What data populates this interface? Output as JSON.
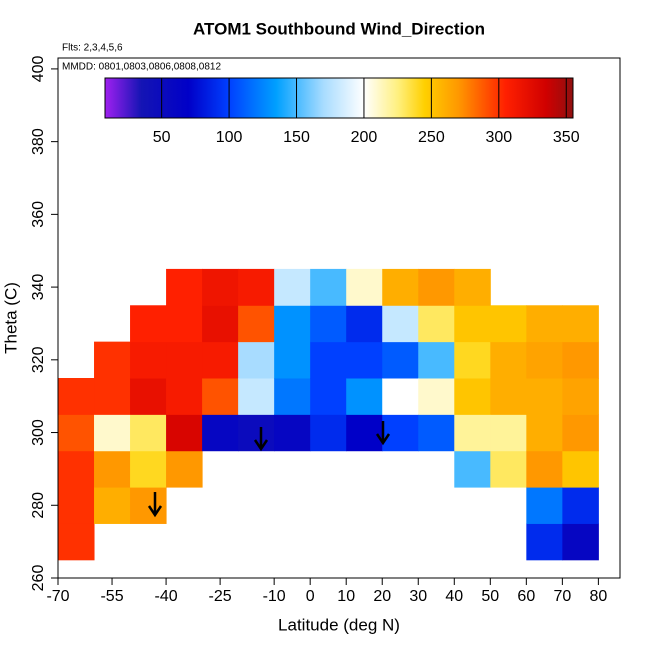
{
  "chart_data": {
    "type": "heatmap",
    "title": "ATOM1 Southbound Wind_Direction",
    "annotations": [
      "Flts: 2,3,4,5,6",
      "MMDD: 0801,0803,0806,0808,0812"
    ],
    "xlabel": "Latitude (deg N)",
    "ylabel": "Theta (C)",
    "xlim": [
      -70,
      86
    ],
    "ylim": [
      260,
      403
    ],
    "xticks": [
      -70,
      -55,
      -40,
      -25,
      -10,
      0,
      10,
      20,
      30,
      40,
      50,
      60,
      70,
      80
    ],
    "yticks": [
      260,
      280,
      300,
      320,
      340,
      360,
      380,
      400
    ],
    "x": [
      -65,
      -55,
      -45,
      -35,
      -25,
      -15,
      -5,
      5,
      15,
      25,
      35,
      45,
      55,
      65,
      75
    ],
    "y": [
      270,
      280,
      290,
      300,
      310,
      320,
      330,
      340
    ],
    "z": [
      [
        300,
        300,
        300,
        290,
        300,
        null,
        null,
        null
      ],
      [
        null,
        260,
        270,
        210,
        300,
        300,
        null,
        null
      ],
      [
        null,
        270,
        240,
        230,
        320,
        310,
        305,
        null
      ],
      [
        null,
        null,
        270,
        330,
        310,
        310,
        305,
        305
      ],
      [
        null,
        null,
        null,
        60,
        290,
        310,
        320,
        315
      ],
      [
        null,
        null,
        null,
        50,
        180,
        170,
        290,
        310
      ],
      [
        null,
        null,
        null,
        60,
        120,
        130,
        130,
        180
      ],
      [
        null,
        null,
        null,
        90,
        100,
        100,
        110,
        150
      ],
      [
        null,
        null,
        null,
        70,
        130,
        100,
        90,
        210
      ],
      [
        null,
        null,
        null,
        100,
        200,
        110,
        180,
        260
      ],
      [
        null,
        null,
        null,
        110,
        210,
        150,
        230,
        270
      ],
      [
        null,
        null,
        150,
        220,
        250,
        240,
        250,
        260
      ],
      [
        null,
        null,
        230,
        220,
        260,
        260,
        250,
        null
      ],
      [
        90,
        120,
        270,
        260,
        260,
        265,
        260,
        null
      ],
      [
        60,
        90,
        250,
        270,
        265,
        270,
        260,
        null
      ]
    ],
    "colorbar": {
      "lim": [
        8,
        355
      ],
      "ticks": [
        50,
        100,
        150,
        200,
        250,
        300,
        350
      ],
      "stops": [
        [
          8,
          "#a020f0"
        ],
        [
          35,
          "#1414b4"
        ],
        [
          70,
          "#0000c8"
        ],
        [
          100,
          "#0040ff"
        ],
        [
          135,
          "#00a0ff"
        ],
        [
          170,
          "#a8dcff"
        ],
        [
          200,
          "#ffffff"
        ],
        [
          225,
          "#fff080"
        ],
        [
          245,
          "#ffd000"
        ],
        [
          270,
          "#ff9800"
        ],
        [
          305,
          "#ff2000"
        ],
        [
          335,
          "#d00000"
        ],
        [
          355,
          "#901010"
        ]
      ]
    }
  }
}
